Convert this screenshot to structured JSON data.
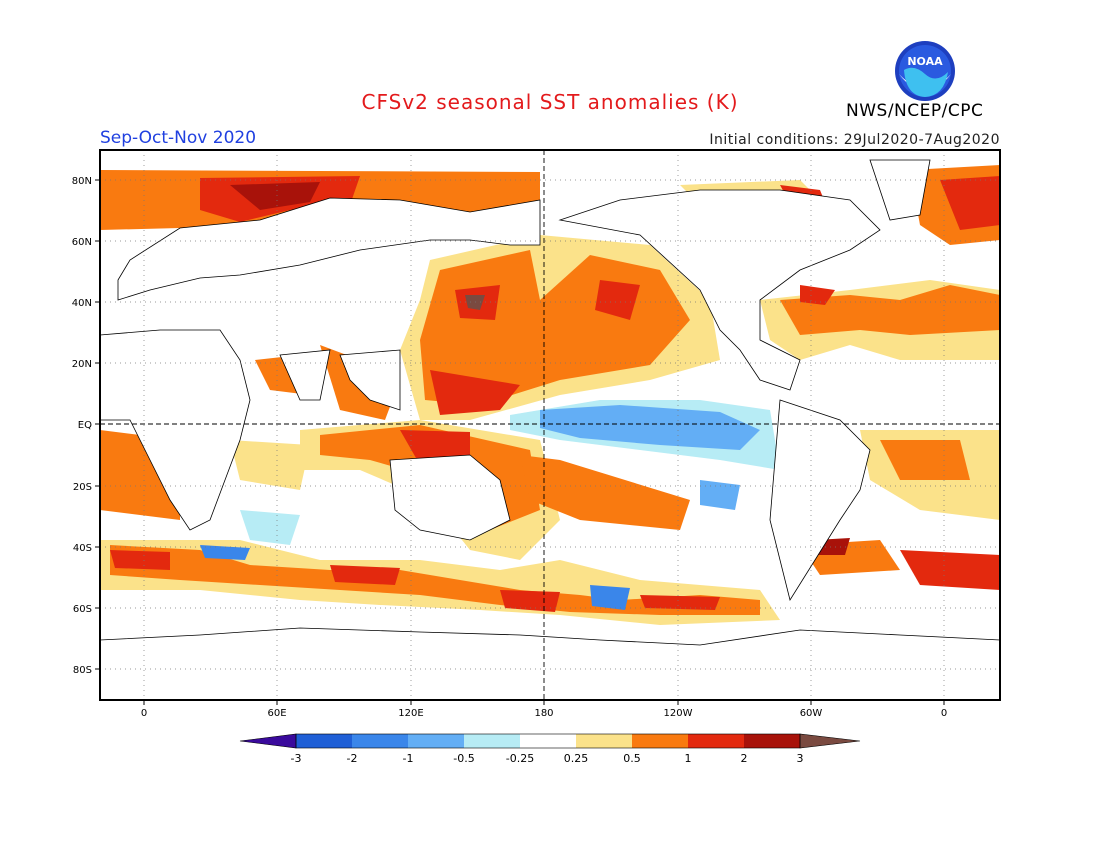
{
  "header": {
    "title": "CFSv2 seasonal SST anomalies (K)",
    "season": "Sep-Oct-Nov 2020",
    "initial_conditions": "Initial conditions: 29Jul2020-7Aug2020",
    "organization": "NWS/NCEP/CPC",
    "logo_text": "NOAA"
  },
  "axes": {
    "lat_labels": [
      "80N",
      "60N",
      "40N",
      "20N",
      "EQ",
      "20S",
      "40S",
      "60S",
      "80S"
    ],
    "lon_labels": [
      "0",
      "60E",
      "120E",
      "180",
      "120W",
      "60W",
      "0"
    ]
  },
  "colorbar": {
    "labels": [
      "-3",
      "-2",
      "-1",
      "-0.5",
      "-0.25",
      "0.25",
      "0.5",
      "1",
      "2",
      "3"
    ],
    "colors": [
      "#3a0a9c",
      "#1f5fd6",
      "#3a86ea",
      "#63aef5",
      "#b7ecf5",
      "#ffffff",
      "#fbe28a",
      "#f97a10",
      "#e3290e",
      "#a8120a",
      "#7a4a40"
    ]
  }
}
